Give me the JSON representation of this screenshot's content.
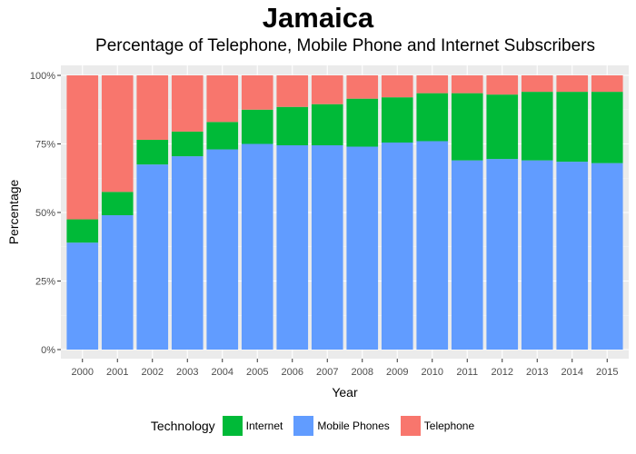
{
  "chart_data": {
    "type": "bar",
    "stacked": true,
    "title": "Jamaica",
    "subtitle": "Percentage of Telephone, Mobile Phone and Internet Subscribers",
    "xlabel": "Year",
    "ylabel": "Percentage",
    "ylim": [
      0,
      1
    ],
    "y_ticks": [
      "0%",
      "25%",
      "50%",
      "75%",
      "100%"
    ],
    "y_tick_values": [
      0,
      0.25,
      0.5,
      0.75,
      1.0
    ],
    "categories": [
      "2000",
      "2001",
      "2002",
      "2003",
      "2004",
      "2005",
      "2006",
      "2007",
      "2008",
      "2009",
      "2010",
      "2011",
      "2012",
      "2013",
      "2014",
      "2015"
    ],
    "series": [
      {
        "name": "Mobile Phones",
        "color": "#619CFF",
        "values": [
          0.39,
          0.49,
          0.675,
          0.705,
          0.73,
          0.75,
          0.745,
          0.745,
          0.74,
          0.755,
          0.76,
          0.69,
          0.695,
          0.69,
          0.685,
          0.68
        ]
      },
      {
        "name": "Internet",
        "color": "#00BA38",
        "values": [
          0.085,
          0.085,
          0.09,
          0.09,
          0.1,
          0.125,
          0.14,
          0.15,
          0.175,
          0.165,
          0.175,
          0.245,
          0.235,
          0.25,
          0.255,
          0.26
        ]
      },
      {
        "name": "Telephone",
        "color": "#F8766D",
        "values": [
          0.525,
          0.425,
          0.235,
          0.205,
          0.17,
          0.125,
          0.115,
          0.105,
          0.085,
          0.08,
          0.065,
          0.065,
          0.07,
          0.06,
          0.06,
          0.06
        ]
      }
    ],
    "legend": {
      "title": "Technology",
      "position": "bottom",
      "items": [
        {
          "label": "Internet",
          "color": "#00BA38"
        },
        {
          "label": "Mobile Phones",
          "color": "#619CFF"
        },
        {
          "label": "Telephone",
          "color": "#F8766D"
        }
      ]
    },
    "grid": true
  }
}
